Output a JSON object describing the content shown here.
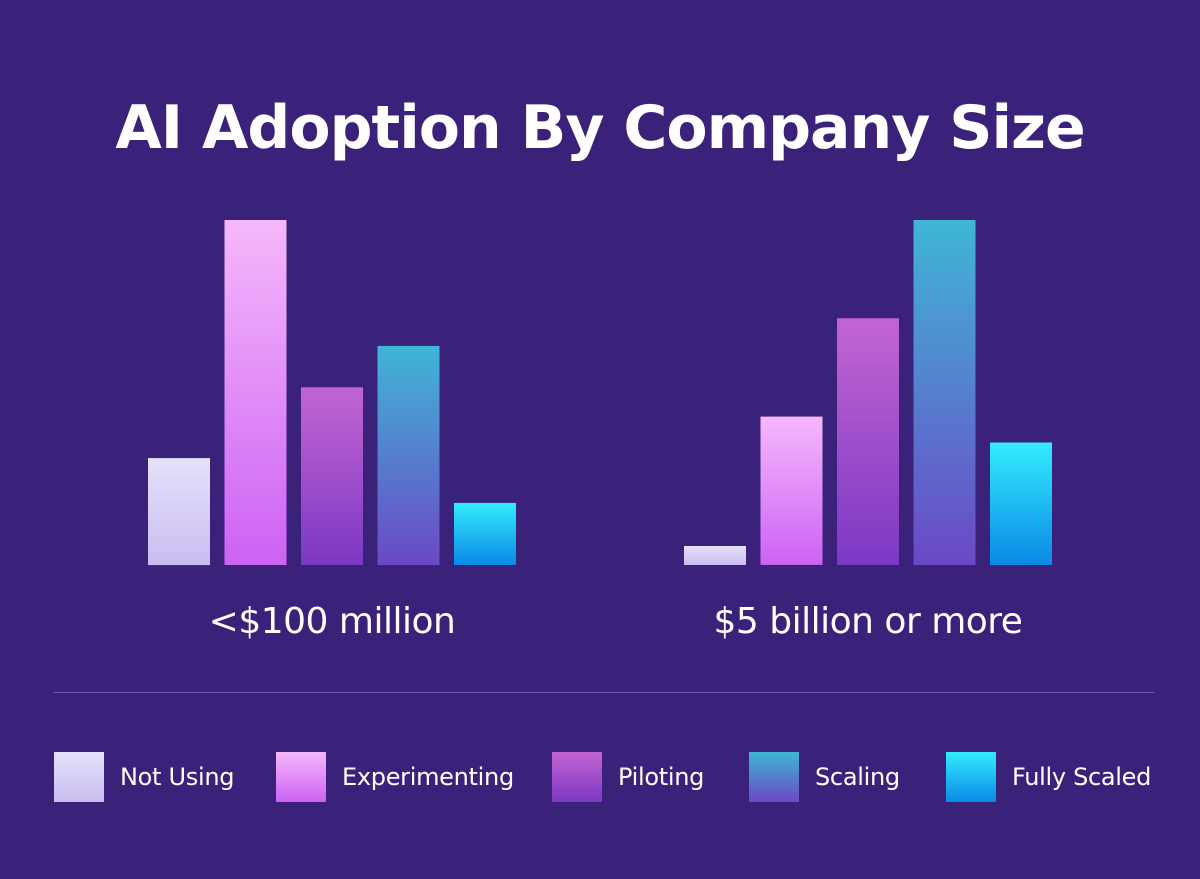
{
  "chart_data": {
    "type": "bar",
    "title": "AI Adoption By Company Size",
    "categories": [
      "<$100 million",
      "$5 billion or more"
    ],
    "series": [
      {
        "name": "Not Using",
        "values": [
          31,
          5.5
        ]
      },
      {
        "name": "Experimenting",
        "values": [
          100,
          43
        ]
      },
      {
        "name": "Piloting",
        "values": [
          51.5,
          71.5
        ]
      },
      {
        "name": "Scaling",
        "values": [
          63.5,
          100
        ]
      },
      {
        "name": "Fully Scaled",
        "values": [
          18,
          35.5
        ]
      }
    ],
    "ylim": [
      0,
      100
    ],
    "grid": false,
    "legend_position": "bottom",
    "xlabel": "",
    "ylabel": ""
  },
  "colors": {
    "background": "#3a2179",
    "divider": "#6a5aa8",
    "Not Using": {
      "top": "#e6e1fb",
      "bottom": "#c9bdf0"
    },
    "Experimenting": {
      "top": "#f5b8fb",
      "bottom": "#cd62f4"
    },
    "Piloting": {
      "top": "#c265d2",
      "bottom": "#7c38c4"
    },
    "Scaling": {
      "top": "#3fb6d6",
      "bottom": "#6b48c6"
    },
    "Fully Scaled": {
      "top": "#33ecfd",
      "bottom": "#0a89e6"
    }
  }
}
